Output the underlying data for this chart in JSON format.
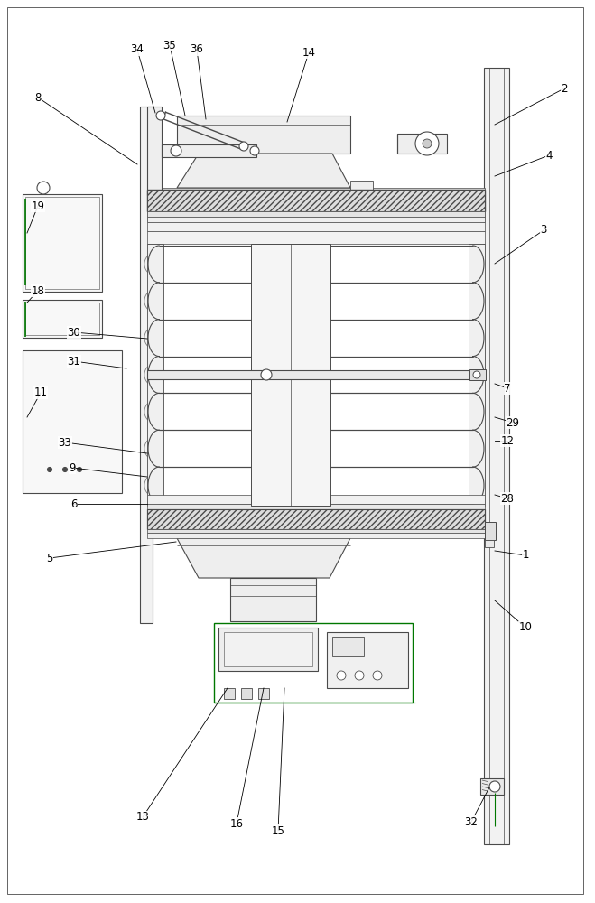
{
  "bg_color": "#ffffff",
  "line_color": "#4a4a4a",
  "green_color": "#007700",
  "figsize": [
    6.59,
    10.0
  ],
  "dpi": 100,
  "annotations": [
    [
      "8",
      42,
      108,
      152,
      182
    ],
    [
      "19",
      42,
      228,
      30,
      258
    ],
    [
      "18",
      42,
      322,
      30,
      335
    ],
    [
      "30",
      82,
      368,
      163,
      375
    ],
    [
      "31",
      82,
      400,
      140,
      408
    ],
    [
      "11",
      45,
      435,
      30,
      462
    ],
    [
      "33",
      72,
      490,
      163,
      502
    ],
    [
      "9",
      80,
      518,
      163,
      528
    ],
    [
      "6",
      82,
      558,
      163,
      558
    ],
    [
      "5",
      55,
      618,
      195,
      600
    ],
    [
      "13",
      158,
      905,
      252,
      762
    ],
    [
      "16",
      262,
      912,
      292,
      762
    ],
    [
      "15",
      308,
      920,
      315,
      762
    ],
    [
      "32",
      522,
      910,
      542,
      872
    ],
    [
      "10",
      582,
      695,
      548,
      665
    ],
    [
      "1",
      582,
      615,
      548,
      610
    ],
    [
      "12",
      562,
      488,
      548,
      488
    ],
    [
      "7",
      562,
      430,
      548,
      425
    ],
    [
      "28",
      562,
      552,
      548,
      548
    ],
    [
      "29",
      568,
      468,
      548,
      462
    ],
    [
      "3",
      602,
      255,
      548,
      292
    ],
    [
      "4",
      608,
      172,
      548,
      195
    ],
    [
      "2",
      625,
      98,
      548,
      138
    ],
    [
      "34",
      152,
      55,
      172,
      125
    ],
    [
      "35",
      188,
      50,
      205,
      128
    ],
    [
      "36",
      218,
      55,
      228,
      132
    ],
    [
      "14",
      342,
      58,
      318,
      135
    ]
  ]
}
